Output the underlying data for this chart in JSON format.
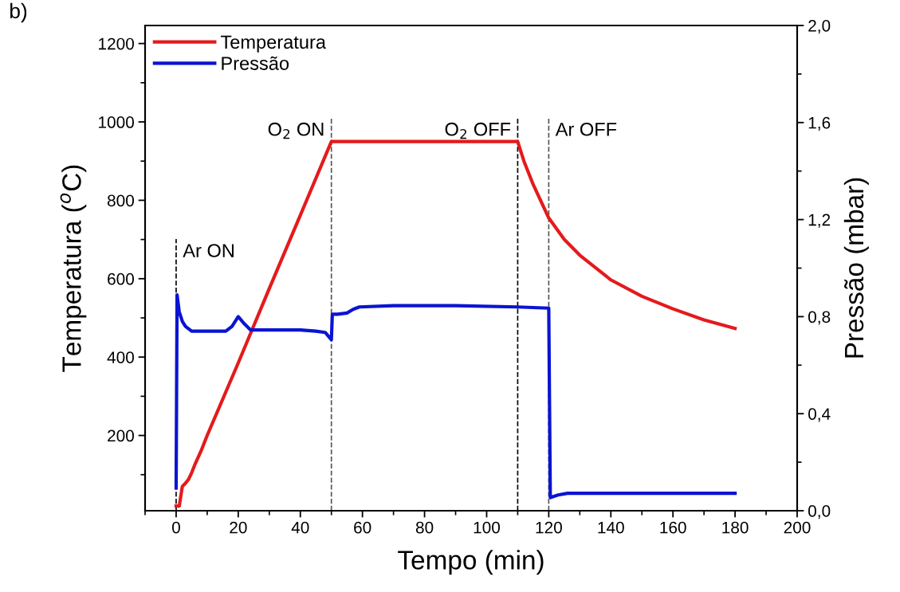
{
  "chart_data": {
    "type": "line",
    "xlabel": "Tempo (min)",
    "ylabel": "Temperatura ($^{o}$C)",
    "y2label": "Pressão (mbar)",
    "xlim": [
      -10,
      200
    ],
    "xticks": [
      0,
      20,
      40,
      60,
      80,
      100,
      120,
      140,
      160,
      180,
      200
    ],
    "ylim": [
      8,
      1246
    ],
    "yticks": [
      200,
      400,
      600,
      800,
      1000,
      1200
    ],
    "y2lim": [
      0,
      2.0
    ],
    "y2ticks": [
      {
        "value": 0,
        "label": "0,0"
      },
      {
        "value": 0.4,
        "label": "0,4"
      },
      {
        "value": 0.8,
        "label": "0,8"
      },
      {
        "value": 1.2,
        "label": "1,2"
      },
      {
        "value": 1.6,
        "label": "1,6"
      },
      {
        "value": 2.0,
        "label": "2,0"
      }
    ],
    "legend": "top left",
    "grid": false,
    "marker": "none",
    "line_style": "solid",
    "series": [
      {
        "name": "Temperatura",
        "color": "#e41a1c",
        "x": [
          0,
          1,
          1.5,
          2,
          3,
          4,
          5,
          6,
          8,
          10,
          20,
          30,
          40,
          50,
          60,
          80,
          100,
          110,
          112,
          115,
          120,
          125,
          130,
          140,
          150,
          160,
          170,
          180
        ],
        "values": [
          20,
          20,
          45,
          70,
          78,
          88,
          105,
          125,
          160,
          200,
          385,
          575,
          762,
          950,
          950,
          950,
          950,
          950,
          900,
          840,
          755,
          700,
          660,
          597,
          555,
          523,
          495,
          473
        ]
      },
      {
        "name": "Pressão",
        "color": "#0a14d2",
        "axis": "y2",
        "x": [
          0,
          0.3,
          1,
          2,
          3,
          5,
          10,
          16,
          18,
          20,
          22,
          24,
          30,
          40,
          45,
          48,
          50,
          50.3,
          52,
          55,
          57,
          59,
          70,
          90,
          110,
          120,
          120.5,
          123,
          126,
          140,
          160,
          180
        ],
        "values": [
          0.094,
          0.89,
          0.82,
          0.78,
          0.76,
          0.74,
          0.74,
          0.74,
          0.76,
          0.8,
          0.77,
          0.745,
          0.745,
          0.745,
          0.74,
          0.735,
          0.705,
          0.81,
          0.81,
          0.815,
          0.83,
          0.84,
          0.845,
          0.845,
          0.84,
          0.835,
          0.054,
          0.065,
          0.072,
          0.072,
          0.072,
          0.072
        ]
      }
    ],
    "ref_lines": [
      {
        "axis": "x",
        "value": 0,
        "label": "Ar ON",
        "color": "#000000",
        "line_style": "dashed"
      },
      {
        "axis": "x",
        "value": 50,
        "label": "O$_{2}$ ON",
        "color": "#555555",
        "line_style": "dashed"
      },
      {
        "axis": "x",
        "value": 110,
        "label": "O$_{2}$ OFF",
        "color": "#000000",
        "line_style": "dashed"
      },
      {
        "axis": "x",
        "value": 120,
        "label": "Ar OFF",
        "color": "#555555",
        "line_style": "dashed"
      }
    ],
    "annotations": [
      "b)"
    ]
  }
}
